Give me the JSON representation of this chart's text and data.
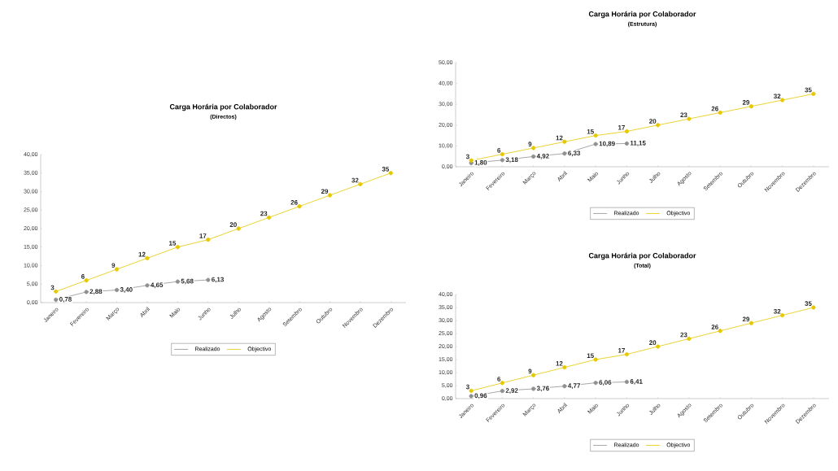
{
  "chart_data": [
    {
      "type": "line",
      "title": "Carga Horária por Colaborador",
      "subtitle": "(Directos)",
      "categories": [
        "Janeiro",
        "Fevereiro",
        "Março",
        "Abril",
        "Maio",
        "Junho",
        "Julho",
        "Agosto",
        "Setembro",
        "Outubro",
        "Novembro",
        "Dezembro"
      ],
      "series": [
        {
          "name": "Realizado",
          "color": "#909090",
          "values": [
            0.78,
            2.88,
            3.4,
            4.65,
            5.68,
            6.13,
            null,
            null,
            null,
            null,
            null,
            null
          ],
          "value_labels": [
            "0,78",
            "2,88",
            "3,40",
            "4,65",
            "5,68",
            "6,13",
            null,
            null,
            null,
            null,
            null,
            null
          ]
        },
        {
          "name": "Objectivo",
          "color": "#e6c800",
          "values": [
            3,
            6,
            9,
            12,
            15,
            17,
            20,
            23,
            26,
            29,
            32,
            35
          ],
          "value_labels": [
            "3",
            "6",
            "9",
            "12",
            "15",
            "17",
            "20",
            "23",
            "26",
            "29",
            "32",
            "35"
          ]
        }
      ],
      "ylim": [
        0,
        40
      ],
      "yticks": [
        {
          "value": 0,
          "label": "0,00"
        },
        {
          "value": 5,
          "label": "5,00"
        },
        {
          "value": 10,
          "label": "10,00"
        },
        {
          "value": 15,
          "label": "15,00"
        },
        {
          "value": 20,
          "label": "20,00"
        },
        {
          "value": 25,
          "label": "25,00"
        },
        {
          "value": 30,
          "label": "30,00"
        },
        {
          "value": 35,
          "label": "35,00"
        },
        {
          "value": 40,
          "label": "40,00"
        }
      ],
      "marker": "circle",
      "legend": "bottom"
    },
    {
      "type": "line",
      "title": "Carga Horária por Colaborador",
      "subtitle": "(Estrutura)",
      "categories": [
        "Janeiro",
        "Fevereiro",
        "Março",
        "Abril",
        "Maio",
        "Junho",
        "Julho",
        "Agosto",
        "Setembro",
        "Outubro",
        "Novembro",
        "Dezembro"
      ],
      "series": [
        {
          "name": "Realizado",
          "color": "#909090",
          "values": [
            1.8,
            3.18,
            4.92,
            6.33,
            10.89,
            11.15,
            null,
            null,
            null,
            null,
            null,
            null
          ],
          "value_labels": [
            "1,80",
            "3,18",
            "4,92",
            "6,33",
            "10,89",
            "11,15",
            null,
            null,
            null,
            null,
            null,
            null
          ]
        },
        {
          "name": "Objectivo",
          "color": "#e6c800",
          "values": [
            3,
            6,
            9,
            12,
            15,
            17,
            20,
            23,
            26,
            29,
            32,
            35
          ],
          "value_labels": [
            "3",
            "6",
            "9",
            "12",
            "15",
            "17",
            "20",
            "23",
            "26",
            "29",
            "32",
            "35"
          ]
        }
      ],
      "ylim": [
        0,
        50
      ],
      "yticks": [
        {
          "value": 0,
          "label": "0,00"
        },
        {
          "value": 10,
          "label": "10,00"
        },
        {
          "value": 20,
          "label": "20,00"
        },
        {
          "value": 30,
          "label": "30,00"
        },
        {
          "value": 40,
          "label": "40,00"
        },
        {
          "value": 50,
          "label": "50,00"
        }
      ],
      "marker": "circle",
      "legend": "bottom"
    },
    {
      "type": "line",
      "title": "Carga Horária por Colaborador",
      "subtitle": "(Total)",
      "categories": [
        "Janeiro",
        "Fevereiro",
        "Março",
        "Abril",
        "Maio",
        "Junho",
        "Julho",
        "Agosto",
        "Setembro",
        "Outubro",
        "Novembro",
        "Dezembro"
      ],
      "series": [
        {
          "name": "Realizado",
          "color": "#909090",
          "values": [
            0.96,
            2.92,
            3.76,
            4.77,
            6.06,
            6.41,
            null,
            null,
            null,
            null,
            null,
            null
          ],
          "value_labels": [
            "0,96",
            "2,92",
            "3,76",
            "4,77",
            "6,06",
            "6,41",
            null,
            null,
            null,
            null,
            null,
            null
          ]
        },
        {
          "name": "Objectivo",
          "color": "#e6c800",
          "values": [
            3,
            6,
            9,
            12,
            15,
            17,
            20,
            23,
            26,
            29,
            32,
            35
          ],
          "value_labels": [
            "3",
            "6",
            "9",
            "12",
            "15",
            "17",
            "20",
            "23",
            "26",
            "29",
            "32",
            "35"
          ]
        }
      ],
      "ylim": [
        0,
        40
      ],
      "yticks": [
        {
          "value": 0,
          "label": "0,00"
        },
        {
          "value": 5,
          "label": "5,00"
        },
        {
          "value": 10,
          "label": "10,00"
        },
        {
          "value": 15,
          "label": "15,00"
        },
        {
          "value": 20,
          "label": "20,00"
        },
        {
          "value": 25,
          "label": "25,00"
        },
        {
          "value": 30,
          "label": "30,00"
        },
        {
          "value": 35,
          "label": "35,00"
        },
        {
          "value": 40,
          "label": "40,00"
        }
      ],
      "marker": "circle",
      "legend": "bottom"
    }
  ]
}
